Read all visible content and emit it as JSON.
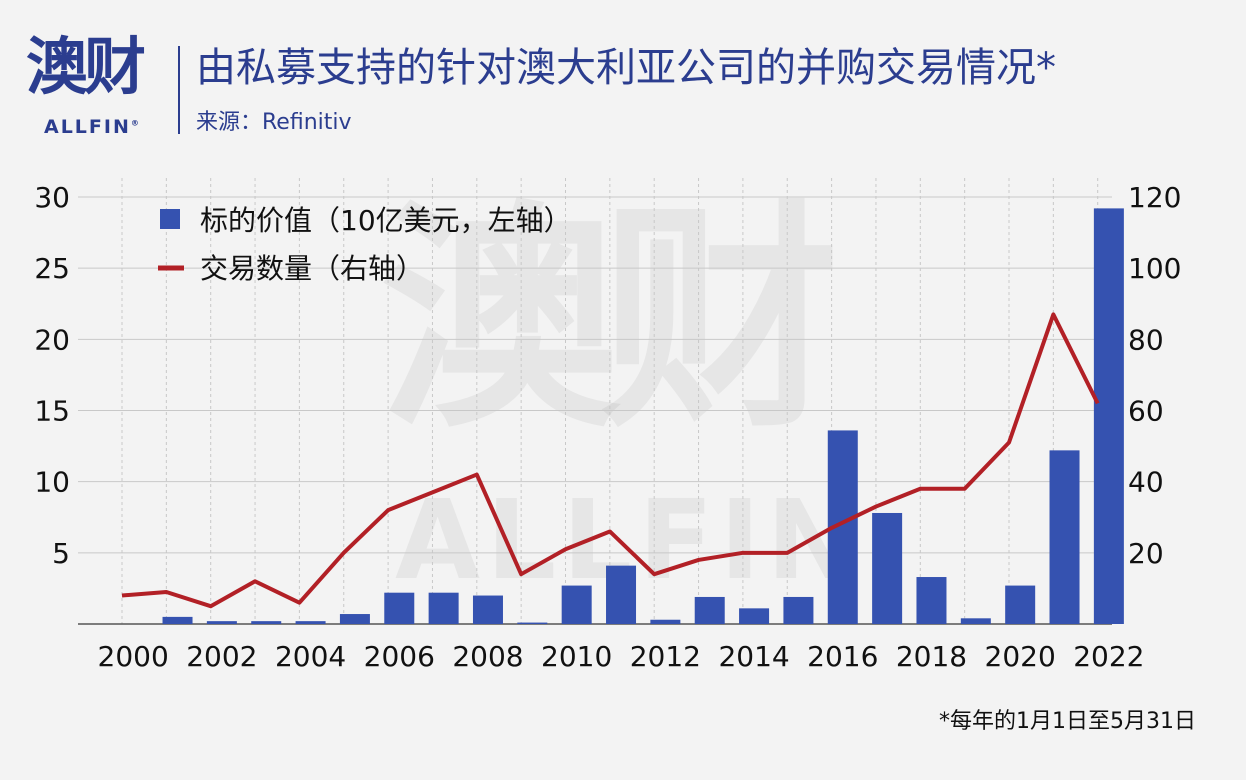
{
  "header": {
    "logo_cn": "澳财",
    "logo_en": "ALLFIN",
    "logo_mark": "®",
    "title": "由私募支持的针对澳大利亚公司的并购交易情况*",
    "source": "来源：Refinitiv"
  },
  "watermark": {
    "cn": "澳财",
    "en": "ALLFIN"
  },
  "footnote": "*每年的1月1日至5月31日",
  "colors": {
    "bar": "#3552b0",
    "line": "#b22026",
    "brand": "#2b3d8f",
    "grid": "#c8c8c8"
  },
  "chart_data": {
    "type": "bar",
    "x": [
      2000,
      2001,
      2002,
      2003,
      2004,
      2005,
      2006,
      2007,
      2008,
      2009,
      2010,
      2011,
      2012,
      2013,
      2014,
      2015,
      2016,
      2017,
      2018,
      2019,
      2020,
      2021,
      2022
    ],
    "x_tick_labels": [
      "2000",
      "2002",
      "2004",
      "2006",
      "2008",
      "2010",
      "2012",
      "2014",
      "2016",
      "2018",
      "2020",
      "2022"
    ],
    "series": [
      {
        "name": "标的价值（10亿美元，左轴）",
        "type": "bar",
        "axis": "left",
        "values": [
          0,
          0.5,
          0.2,
          0.2,
          0.2,
          0.7,
          2.2,
          2.2,
          2.0,
          0.1,
          2.7,
          4.1,
          0.3,
          1.9,
          1.1,
          1.9,
          13.6,
          7.8,
          3.3,
          0.4,
          2.7,
          12.2,
          29.2
        ]
      },
      {
        "name": "交易数量（右轴）",
        "type": "line",
        "axis": "right",
        "values": [
          8,
          9,
          5,
          12,
          6,
          20,
          32,
          37,
          42,
          14,
          21,
          26,
          14,
          18,
          20,
          20,
          27,
          33,
          38,
          38,
          51,
          87,
          62
        ]
      }
    ],
    "y_left": {
      "ticks": [
        5,
        10,
        15,
        20,
        25,
        30
      ],
      "lim": [
        0,
        30
      ]
    },
    "y_right": {
      "ticks": [
        20,
        40,
        60,
        80,
        100,
        120
      ],
      "lim": [
        0,
        120
      ]
    },
    "legend_position": "top-left",
    "grid": true
  }
}
